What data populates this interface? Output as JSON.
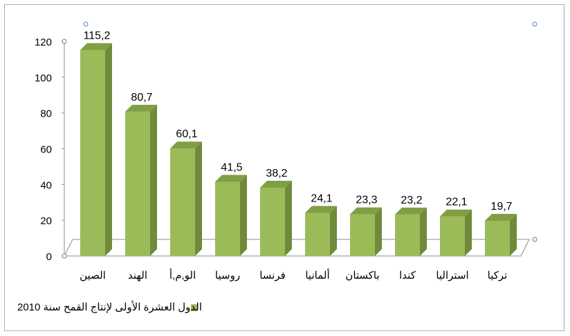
{
  "chart_data": {
    "type": "bar",
    "title": "",
    "xlabel": "",
    "ylabel": "",
    "ylim": [
      0,
      120
    ],
    "yticks": [
      "0",
      "20",
      "40",
      "60",
      "80",
      "100",
      "120"
    ],
    "categories": [
      "الصين",
      "الهند",
      "الو,م,أ",
      "روسيا",
      "فرنسا",
      "ألمانيا",
      "باكستان",
      "كندا",
      "استراليا",
      "تركيا"
    ],
    "values": [
      115.2,
      80.7,
      60.1,
      41.5,
      38.2,
      24.1,
      23.3,
      23.2,
      22.1,
      19.7
    ],
    "data_labels": [
      "115,2",
      "80,7",
      "60,1",
      "41,5",
      "38,2",
      "24,1",
      "23,3",
      "23,2",
      "22,1",
      "19,7"
    ],
    "series": [
      {
        "name": "الدول العشرة الأولى لإنتاج القمح سنة 2010",
        "color": "#9bbb59"
      }
    ],
    "legend_position": "bottom",
    "grid": false,
    "style": "3d-column"
  }
}
